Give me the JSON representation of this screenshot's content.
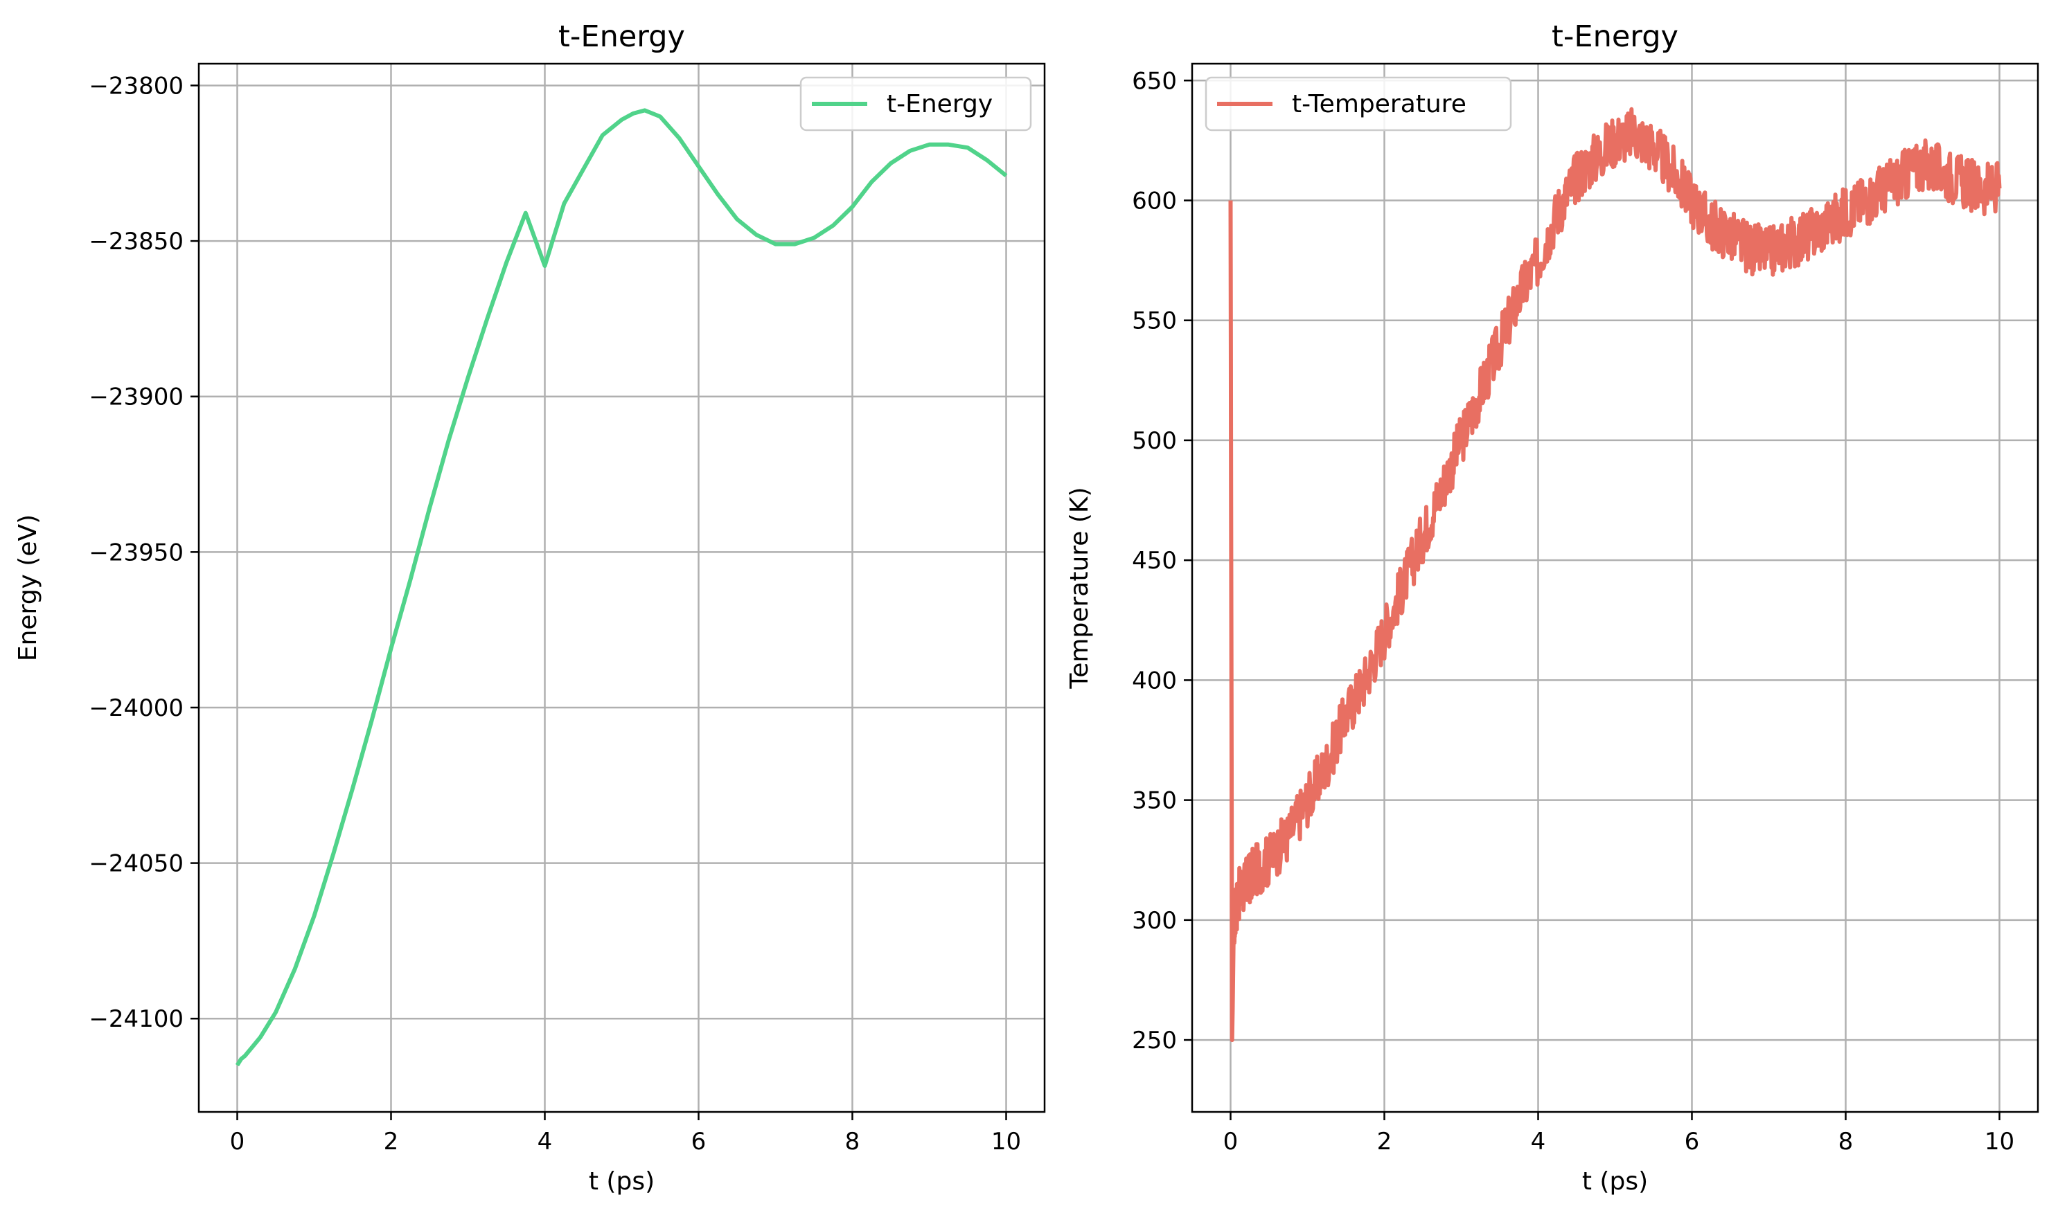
{
  "chart_data": [
    {
      "type": "line",
      "title": "t-Energy",
      "xlabel": "t (ps)",
      "ylabel": "Energy (eV)",
      "xlim": [
        -0.5,
        10.5
      ],
      "ylim": [
        -24130,
        -23793
      ],
      "xticks": [
        0,
        2,
        4,
        6,
        8,
        10
      ],
      "xtick_labels": [
        "0",
        "2",
        "4",
        "6",
        "8",
        "10"
      ],
      "yticks": [
        -24100,
        -24050,
        -24000,
        -23950,
        -23900,
        -23850,
        -23800
      ],
      "ytick_labels": [
        "−24100",
        "−24050",
        "−24000",
        "−23950",
        "−23900",
        "−23850",
        "−23800"
      ],
      "grid": true,
      "legend": "top-right",
      "series": [
        {
          "name": "t-Energy",
          "color": "#50d38a",
          "x": [
            0,
            0.05,
            0.1,
            0.2,
            0.3,
            0.5,
            0.75,
            1.0,
            1.25,
            1.5,
            1.75,
            2.0,
            2.25,
            2.5,
            2.75,
            3.0,
            3.25,
            3.5,
            3.75,
            4.0,
            4.25,
            4.5,
            4.75,
            5.0,
            5.15,
            5.3,
            5.5,
            5.75,
            6.0,
            6.25,
            6.5,
            6.75,
            7.0,
            7.25,
            7.5,
            7.75,
            8.0,
            8.25,
            8.5,
            8.75,
            9.0,
            9.25,
            9.5,
            9.75,
            10.0
          ],
          "y": [
            -24115,
            -24113,
            -24112,
            -24109,
            -24106,
            -24098,
            -24084,
            -24067,
            -24047,
            -24026,
            -24004,
            -23981,
            -23959,
            -23936,
            -23914,
            -23894,
            -23875,
            -23857,
            -23841,
            -23858,
            -23838,
            -23827,
            -23816,
            -23811,
            -23809,
            -23808,
            -23810,
            -23817,
            -23826,
            -23835,
            -23843,
            -23848,
            -23851,
            -23851,
            -23849,
            -23845,
            -23839,
            -23831,
            -23825,
            -23821,
            -23819,
            -23819,
            -23820,
            -23824,
            -23829
          ]
        }
      ]
    },
    {
      "type": "line",
      "title": "t-Energy",
      "xlabel": "t (ps)",
      "ylabel": "Temperature (K)",
      "xlim": [
        -0.5,
        10.5
      ],
      "ylim": [
        220,
        657
      ],
      "xticks": [
        0,
        2,
        4,
        6,
        8,
        10
      ],
      "xtick_labels": [
        "0",
        "2",
        "4",
        "6",
        "8",
        "10"
      ],
      "yticks": [
        250,
        300,
        350,
        400,
        450,
        500,
        550,
        600,
        650
      ],
      "ytick_labels": [
        "250",
        "300",
        "350",
        "400",
        "450",
        "500",
        "550",
        "600",
        "650"
      ],
      "grid": true,
      "legend": "top-left",
      "series": [
        {
          "name": "t-Temperature",
          "color": "#e86f62",
          "x": [
            0,
            0.01,
            0.02,
            0.03,
            0.05,
            0.1,
            0.2,
            0.3,
            0.5,
            0.75,
            1.0,
            1.25,
            1.5,
            1.75,
            2.0,
            2.25,
            2.5,
            2.75,
            3.0,
            3.25,
            3.5,
            3.75,
            4.0,
            4.25,
            4.5,
            4.75,
            5.0,
            5.25,
            5.5,
            5.75,
            6.0,
            6.25,
            6.5,
            6.75,
            7.0,
            7.25,
            7.5,
            7.75,
            8.0,
            8.25,
            8.5,
            8.75,
            9.0,
            9.25,
            9.5,
            9.75,
            10.0
          ],
          "y": [
            600,
            420,
            250,
            270,
            300,
            310,
            315,
            320,
            325,
            335,
            350,
            365,
            385,
            400,
            420,
            440,
            460,
            480,
            500,
            520,
            540,
            560,
            575,
            595,
            610,
            618,
            625,
            628,
            622,
            612,
            600,
            590,
            585,
            580,
            578,
            582,
            585,
            590,
            595,
            600,
            605,
            610,
            615,
            612,
            608,
            605,
            605
          ]
        }
      ]
    }
  ]
}
